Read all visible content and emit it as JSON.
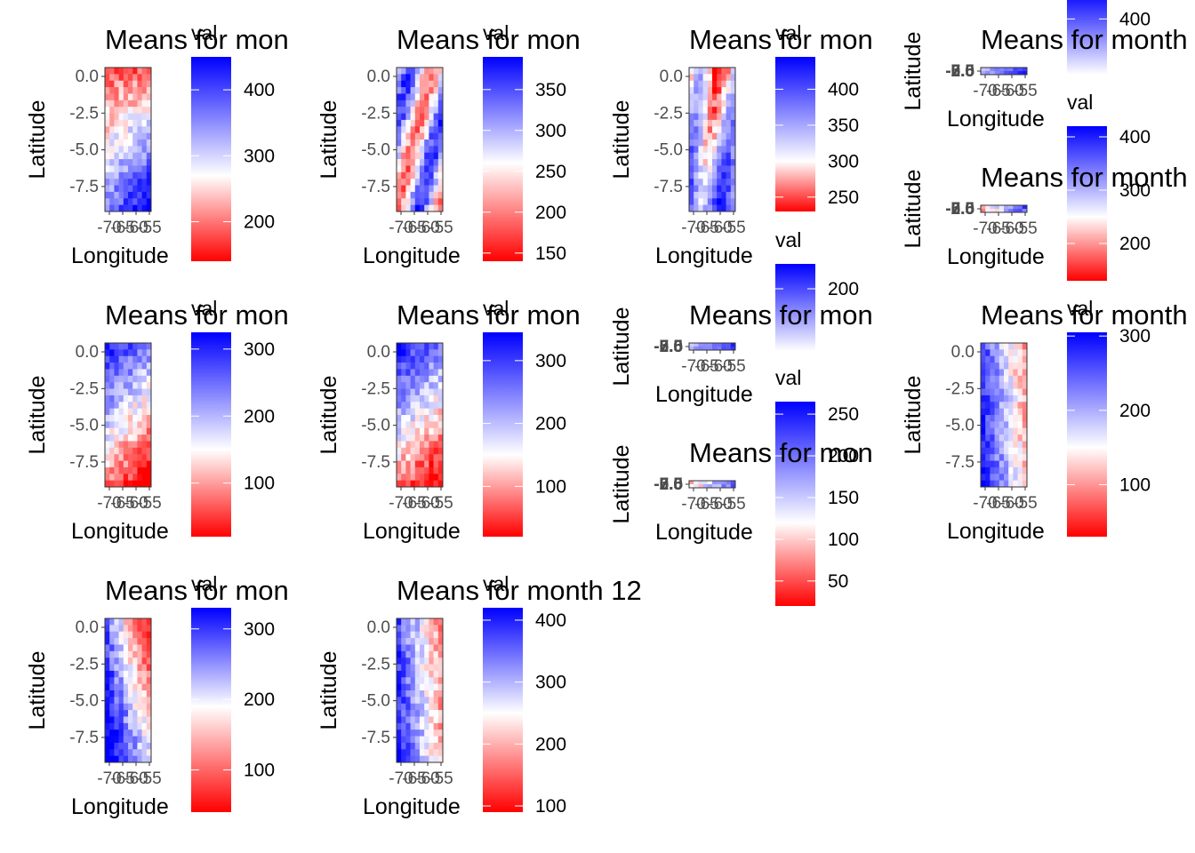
{
  "chart_data": [
    {
      "type": "heatmap",
      "title": "Means for mon",
      "legend_title": "val",
      "ylabel": "Latitude",
      "xlabel": "Longitude",
      "y_ticks": [
        "0.0",
        "-2.5",
        "-5.0",
        "-7.5"
      ],
      "x_ticks": [
        "-70",
        "-65",
        "-60",
        "-55"
      ],
      "legend_ticks": [
        "400",
        "300",
        "200"
      ],
      "value_range": [
        140,
        450
      ],
      "midpoint": 270,
      "pattern": "red-top-blue-bottom-right"
    },
    {
      "type": "heatmap",
      "title": "Means for mon",
      "legend_title": "val",
      "ylabel": "Latitude",
      "xlabel": "Longitude",
      "y_ticks": [
        "0.0",
        "-2.5",
        "-5.0",
        "-7.5"
      ],
      "x_ticks": [
        "-70",
        "-65",
        "-60",
        "-55"
      ],
      "legend_ticks": [
        "350",
        "300",
        "250",
        "200",
        "150"
      ],
      "value_range": [
        140,
        390
      ],
      "midpoint": 260,
      "pattern": "mixed"
    },
    {
      "type": "heatmap",
      "title": "Means for mon",
      "legend_title": "val",
      "ylabel": "Latitude",
      "xlabel": "Longitude",
      "y_ticks": [
        "0.0",
        "-2.5",
        "-5.0",
        "-7.5"
      ],
      "x_ticks": [
        "-70",
        "-65",
        "-60",
        "-55"
      ],
      "legend_ticks": [
        "400",
        "350",
        "300",
        "250"
      ],
      "value_range": [
        230,
        445
      ],
      "midpoint": 300,
      "pattern": "mixed-blue-bottom"
    },
    {
      "type": "heatmap",
      "title": "Means for month",
      "legend_title": "val",
      "ylabel": "Latitude",
      "xlabel": "Longitude",
      "y_ticks": [
        "0.0",
        "-2.5",
        "-5.0",
        "-7.5"
      ],
      "x_ticks": [
        "-70",
        "-65",
        "-60",
        "-55"
      ],
      "legend_ticks": [
        "400"
      ],
      "value_range": [
        300,
        450
      ],
      "midpoint": 300,
      "pattern": "collapsed"
    },
    {
      "type": "heatmap",
      "title": "Means for month",
      "legend_title": "val",
      "ylabel": "Latitude",
      "xlabel": "Longitude",
      "y_ticks": [
        "0.0",
        "-2.5",
        "-5.0",
        "-7.5"
      ],
      "x_ticks": [
        "-70",
        "-65",
        "-60",
        "-55"
      ],
      "legend_ticks": [
        "400",
        "300",
        "200"
      ],
      "value_range": [
        130,
        420
      ],
      "midpoint": 250,
      "pattern": "collapsed"
    },
    {
      "type": "heatmap",
      "title": "Means for mon",
      "legend_title": "val",
      "ylabel": "Latitude",
      "xlabel": "Longitude",
      "y_ticks": [
        "0.0",
        "-2.5",
        "-5.0",
        "-7.5"
      ],
      "x_ticks": [
        "-70",
        "-65",
        "-60",
        "-55"
      ],
      "legend_ticks": [
        "300",
        "200",
        "100"
      ],
      "value_range": [
        20,
        325
      ],
      "midpoint": 150,
      "pattern": "blue-top-red-bottom"
    },
    {
      "type": "heatmap",
      "title": "Means for mon",
      "legend_title": "val",
      "ylabel": "Latitude",
      "xlabel": "Longitude",
      "y_ticks": [
        "0.0",
        "-2.5",
        "-5.0",
        "-7.5"
      ],
      "x_ticks": [
        "-70",
        "-65",
        "-60",
        "-55"
      ],
      "legend_ticks": [
        "300",
        "200",
        "100"
      ],
      "value_range": [
        20,
        345
      ],
      "midpoint": 150,
      "pattern": "blue-top-red-bottom"
    },
    {
      "type": "heatmap",
      "title": "Means for mon",
      "legend_title": "val",
      "ylabel": "Latitude",
      "xlabel": "Longitude",
      "y_ticks": [
        "0.0",
        "-2.5",
        "-5.0",
        "-7.5"
      ],
      "x_ticks": [
        "-70",
        "-65",
        "-60",
        "-55"
      ],
      "legend_ticks": [
        "200"
      ],
      "value_range": [
        100,
        240
      ],
      "midpoint": 100,
      "pattern": "collapsed"
    },
    {
      "type": "heatmap",
      "title": "Means for mon",
      "legend_title": "val",
      "ylabel": "Latitude",
      "xlabel": "Longitude",
      "y_ticks": [
        "0.0",
        "-2.5",
        "-5.0",
        "-7.5"
      ],
      "x_ticks": [
        "-70",
        "-65",
        "-60",
        "-55"
      ],
      "legend_ticks": [
        "250",
        "200",
        "150",
        "100",
        "50"
      ],
      "value_range": [
        20,
        265
      ],
      "midpoint": 120,
      "pattern": "collapsed"
    },
    {
      "type": "heatmap",
      "title": "Means for month",
      "legend_title": "val",
      "ylabel": "Latitude",
      "xlabel": "Longitude",
      "y_ticks": [
        "0.0",
        "-2.5",
        "-5.0",
        "-7.5"
      ],
      "x_ticks": [
        "-70",
        "-65",
        "-60",
        "-55"
      ],
      "legend_ticks": [
        "300",
        "200",
        "100"
      ],
      "value_range": [
        30,
        305
      ],
      "midpoint": 150,
      "pattern": "red-right-blue-left"
    },
    {
      "type": "heatmap",
      "title": "Means for mon",
      "legend_title": "val",
      "ylabel": "Latitude",
      "xlabel": "Longitude",
      "y_ticks": [
        "0.0",
        "-2.5",
        "-5.0",
        "-7.5"
      ],
      "x_ticks": [
        "-70",
        "-65",
        "-60",
        "-55"
      ],
      "legend_ticks": [
        "300",
        "200",
        "100"
      ],
      "value_range": [
        40,
        330
      ],
      "midpoint": 190,
      "pattern": "red-top-right-blue-left"
    },
    {
      "type": "heatmap",
      "title": "Means for month 12",
      "legend_title": "val",
      "ylabel": "Latitude",
      "xlabel": "Longitude",
      "y_ticks": [
        "0.0",
        "-2.5",
        "-5.0",
        "-7.5"
      ],
      "x_ticks": [
        "-70",
        "-65",
        "-60",
        "-55"
      ],
      "legend_ticks": [
        "400",
        "300",
        "200",
        "100"
      ],
      "value_range": [
        90,
        420
      ],
      "midpoint": 250,
      "pattern": "red-right-blue-left"
    }
  ]
}
